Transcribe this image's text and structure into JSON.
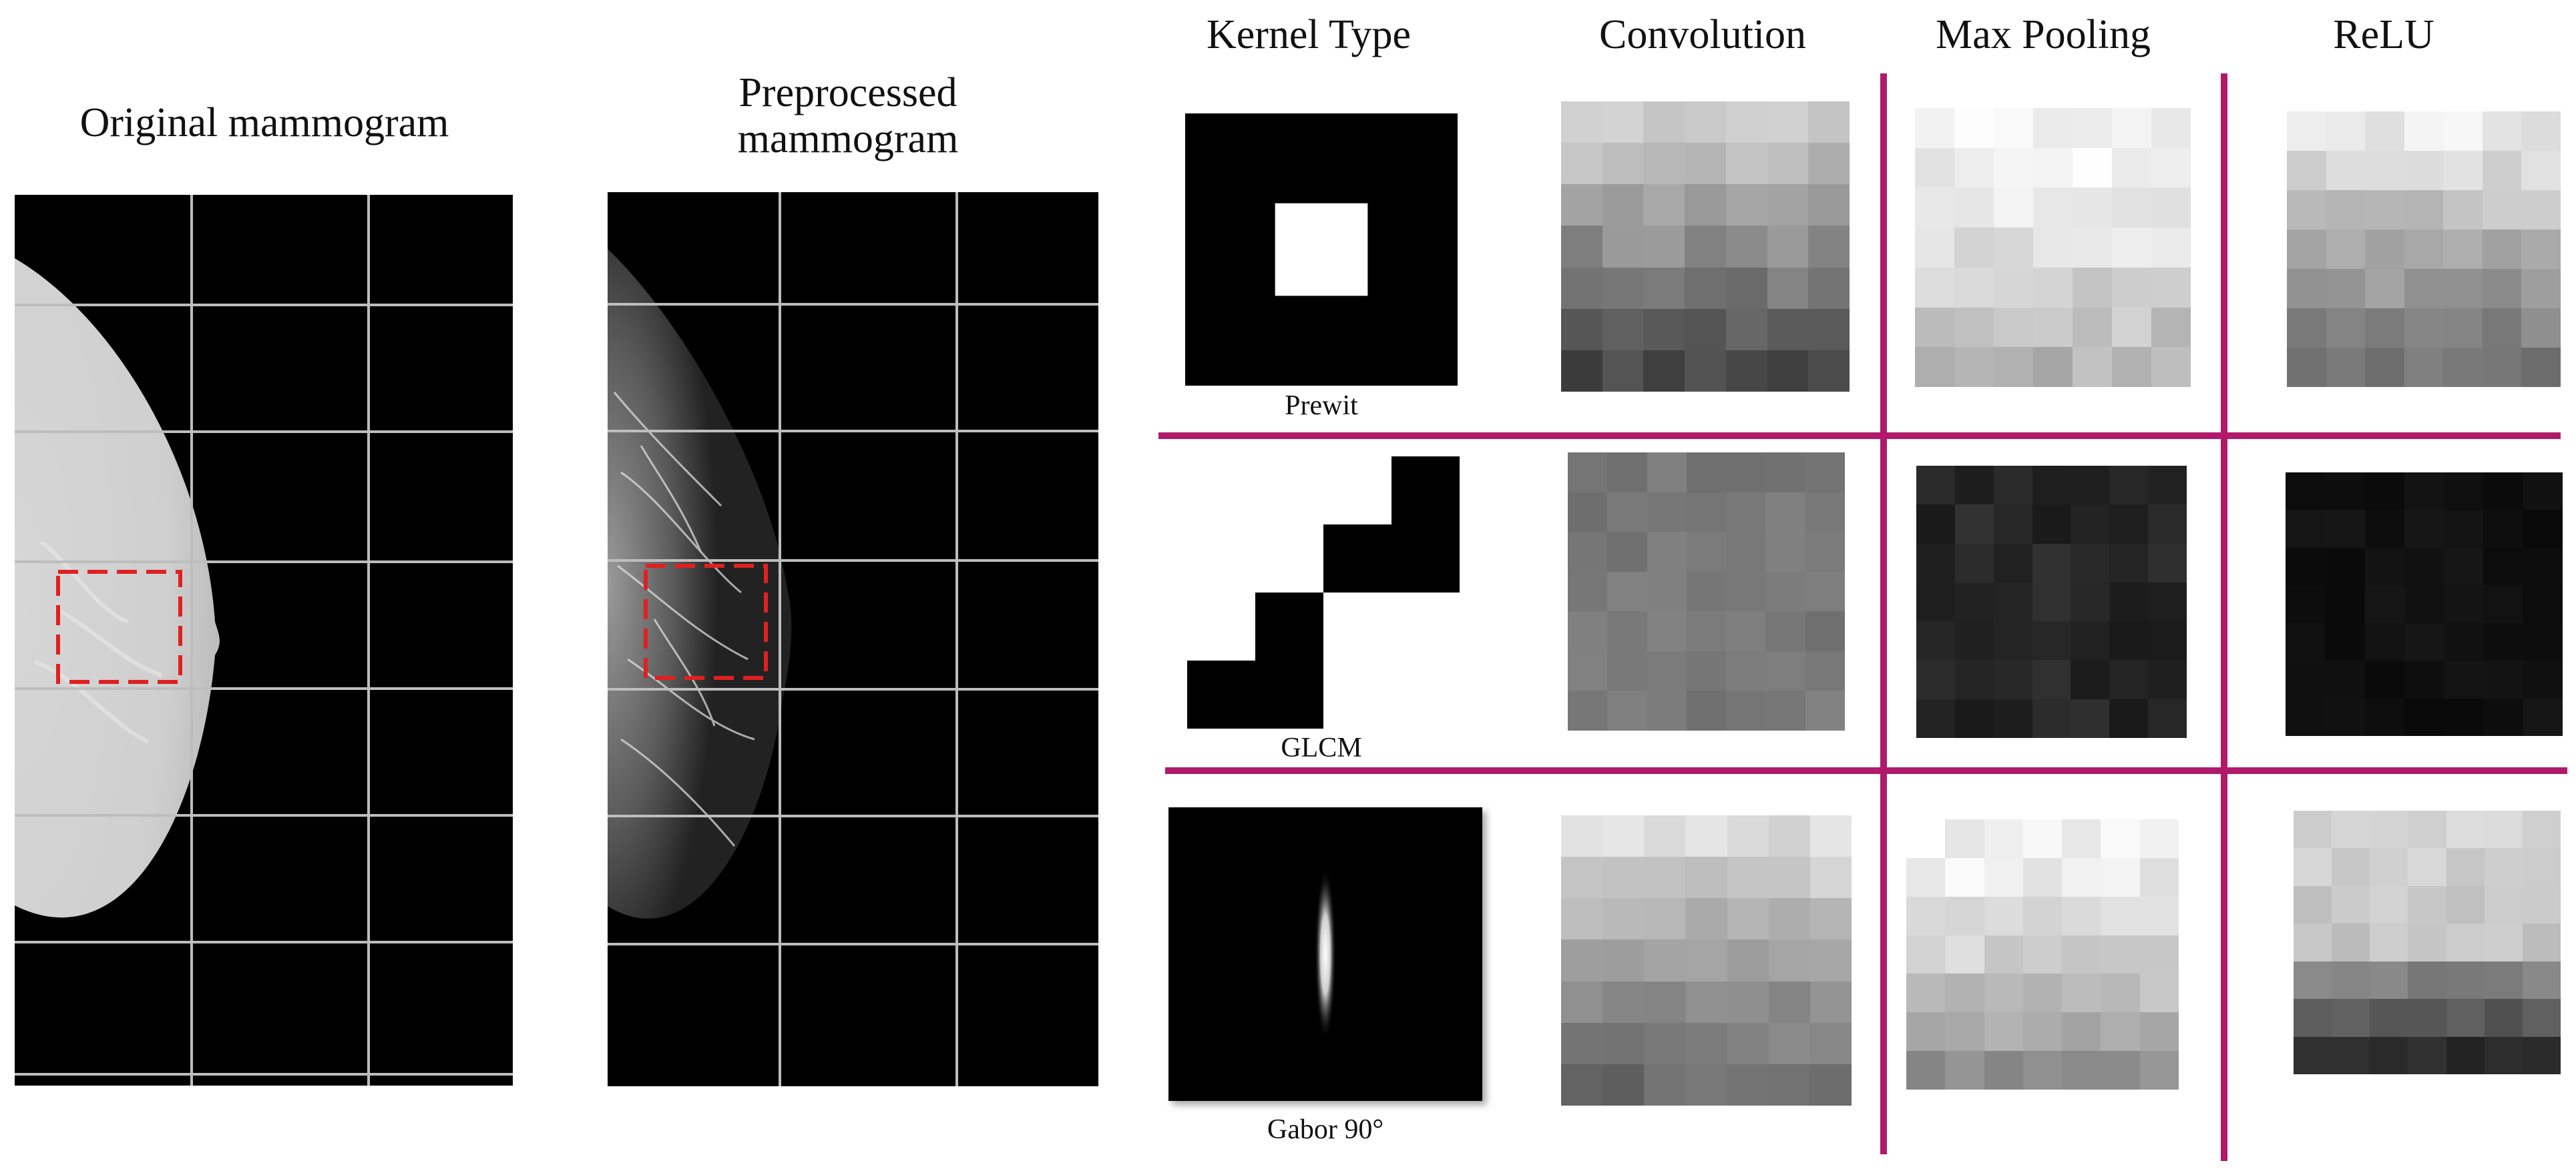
{
  "panels": {
    "original_title": "Original  mammogram",
    "preprocessed_title": "Preprocessed mammogram"
  },
  "columns": {
    "kernel_type": "Kernel Type",
    "convolution": "Convolution",
    "max_pooling": "Max Pooling",
    "relu": "ReLU"
  },
  "kernels": [
    {
      "label": "Prewit",
      "icon": "prewitt-kernel-icon"
    },
    {
      "label": "GLCM",
      "icon": "glcm-kernel-icon"
    },
    {
      "label": "Gabor 90°",
      "icon": "gabor-kernel-icon"
    }
  ],
  "colors": {
    "separator": "#b01a6b",
    "roi_box": "#e02020",
    "grid_line": "#bdbdbd"
  },
  "feature_maps": [
    {
      "row": 0,
      "stage": "convolution",
      "mean": 0.58,
      "spread": 0.06,
      "pattern": "vertical-dark-bottom",
      "min": 0.28,
      "max": 0.82
    },
    {
      "row": 0,
      "stage": "max_pooling",
      "mean": 0.86,
      "spread": 0.06,
      "pattern": "light-top",
      "min": 0.7,
      "max": 0.96
    },
    {
      "row": 0,
      "stage": "relu",
      "mean": 0.74,
      "spread": 0.06,
      "pattern": "vertical-dark-bottom",
      "min": 0.45,
      "max": 0.92
    },
    {
      "row": 1,
      "stage": "convolution",
      "mean": 0.47,
      "spread": 0.04,
      "pattern": "flat",
      "min": 0.4,
      "max": 0.55
    },
    {
      "row": 1,
      "stage": "max_pooling",
      "mean": 0.15,
      "spread": 0.05,
      "pattern": "flat",
      "min": 0.06,
      "max": 0.24
    },
    {
      "row": 1,
      "stage": "relu",
      "mean": 0.06,
      "spread": 0.03,
      "pattern": "flat",
      "min": 0.02,
      "max": 0.2
    },
    {
      "row": 2,
      "stage": "convolution",
      "mean": 0.7,
      "spread": 0.05,
      "pattern": "vertical-dark-bottom",
      "min": 0.42,
      "max": 0.86
    },
    {
      "row": 2,
      "stage": "max_pooling",
      "mean": 0.8,
      "spread": 0.06,
      "pattern": "light-top",
      "min": 0.55,
      "max": 0.96
    },
    {
      "row": 2,
      "stage": "relu",
      "mean": 0.66,
      "spread": 0.05,
      "pattern": "strong-dark-bottom",
      "min": 0.18,
      "max": 0.84
    }
  ]
}
